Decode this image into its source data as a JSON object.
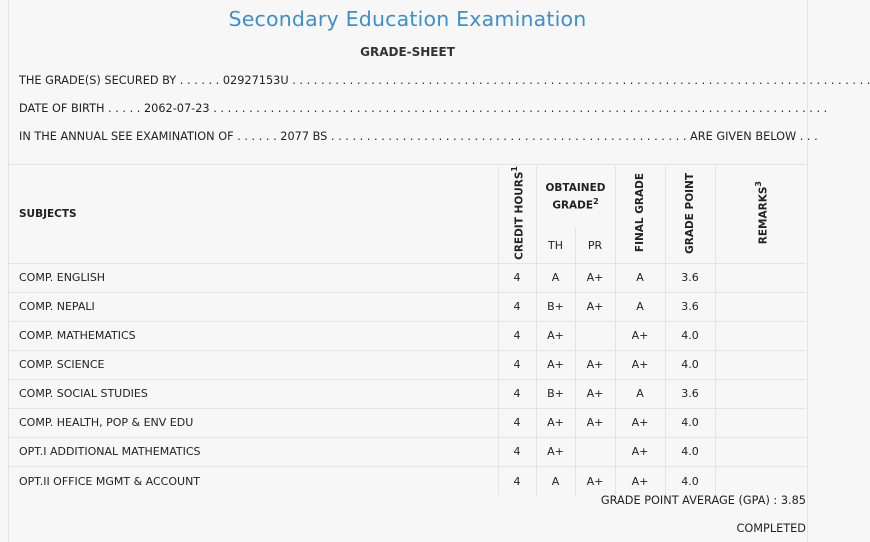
{
  "header": {
    "title": "Secondary Education Examination",
    "subtitle": "GRADE-SHEET"
  },
  "info": {
    "line1": "THE GRADE(S) SECURED BY . . . . . . 02927153U . . . . . . . . . . . . . . . . . . . . . . . . . . . . . . . . . . . . . . . . . . . . . . . . . . . . . . . . . . . . . . . . . . . . . . . . . . . . . . . . .",
    "line2": "DATE OF BIRTH . . . . . 2062-07-23 . . . . . . . . . . . . . . . . . . . . . . . . . . . . . . . . . . . . . . . . . . . . . . . . . . . . . . . . . . . . . . . . . . . . . . . . . . . . . . . . . . . . . .",
    "line3": "IN THE ANNUAL SEE EXAMINATION OF . . . . . . 2077 BS . . . . . . . . . . . . . . . . . . . . . . . . . . . . . . . . . . . . . . . . . . . . . . . . . . ARE GIVEN BELOW . . ."
  },
  "table": {
    "headers": {
      "subjects": "SUBJECTS",
      "credit_hours": "CREDIT HOURS",
      "credit_hours_sup": "1",
      "obtained_grade": "OBTAINED GRADE",
      "obtained_grade_sup": "2",
      "th": "TH",
      "pr": "PR",
      "final_grade": "FINAL GRADE",
      "grade_point": "GRADE POINT",
      "remarks": "REMARKS",
      "remarks_sup": "3"
    },
    "rows": [
      {
        "subject": "COMP. ENGLISH",
        "credit": "4",
        "th": "A",
        "pr": "A+",
        "final": "A",
        "gp": "3.6",
        "remarks": ""
      },
      {
        "subject": "COMP. NEPALI",
        "credit": "4",
        "th": "B+",
        "pr": "A+",
        "final": "A",
        "gp": "3.6",
        "remarks": ""
      },
      {
        "subject": "COMP. MATHEMATICS",
        "credit": "4",
        "th": "A+",
        "pr": "",
        "final": "A+",
        "gp": "4.0",
        "remarks": ""
      },
      {
        "subject": "COMP. SCIENCE",
        "credit": "4",
        "th": "A+",
        "pr": "A+",
        "final": "A+",
        "gp": "4.0",
        "remarks": ""
      },
      {
        "subject": "COMP. SOCIAL STUDIES",
        "credit": "4",
        "th": "B+",
        "pr": "A+",
        "final": "A",
        "gp": "3.6",
        "remarks": ""
      },
      {
        "subject": "COMP. HEALTH, POP & ENV EDU",
        "credit": "4",
        "th": "A+",
        "pr": "A+",
        "final": "A+",
        "gp": "4.0",
        "remarks": ""
      },
      {
        "subject": "OPT.I ADDITIONAL MATHEMATICS",
        "credit": "4",
        "th": "A+",
        "pr": "",
        "final": "A+",
        "gp": "4.0",
        "remarks": ""
      },
      {
        "subject": "OPT.II OFFICE MGMT & ACCOUNT",
        "credit": "4",
        "th": "A",
        "pr": "A+",
        "final": "A+",
        "gp": "4.0",
        "remarks": ""
      }
    ]
  },
  "summary": {
    "gpa_label": "GRADE POINT AVERAGE (GPA) : 3.85",
    "status": "COMPLETED"
  },
  "colors": {
    "title": "#3d8fd0",
    "background": "#f7f7f7",
    "grid": "#e4e4e4"
  }
}
